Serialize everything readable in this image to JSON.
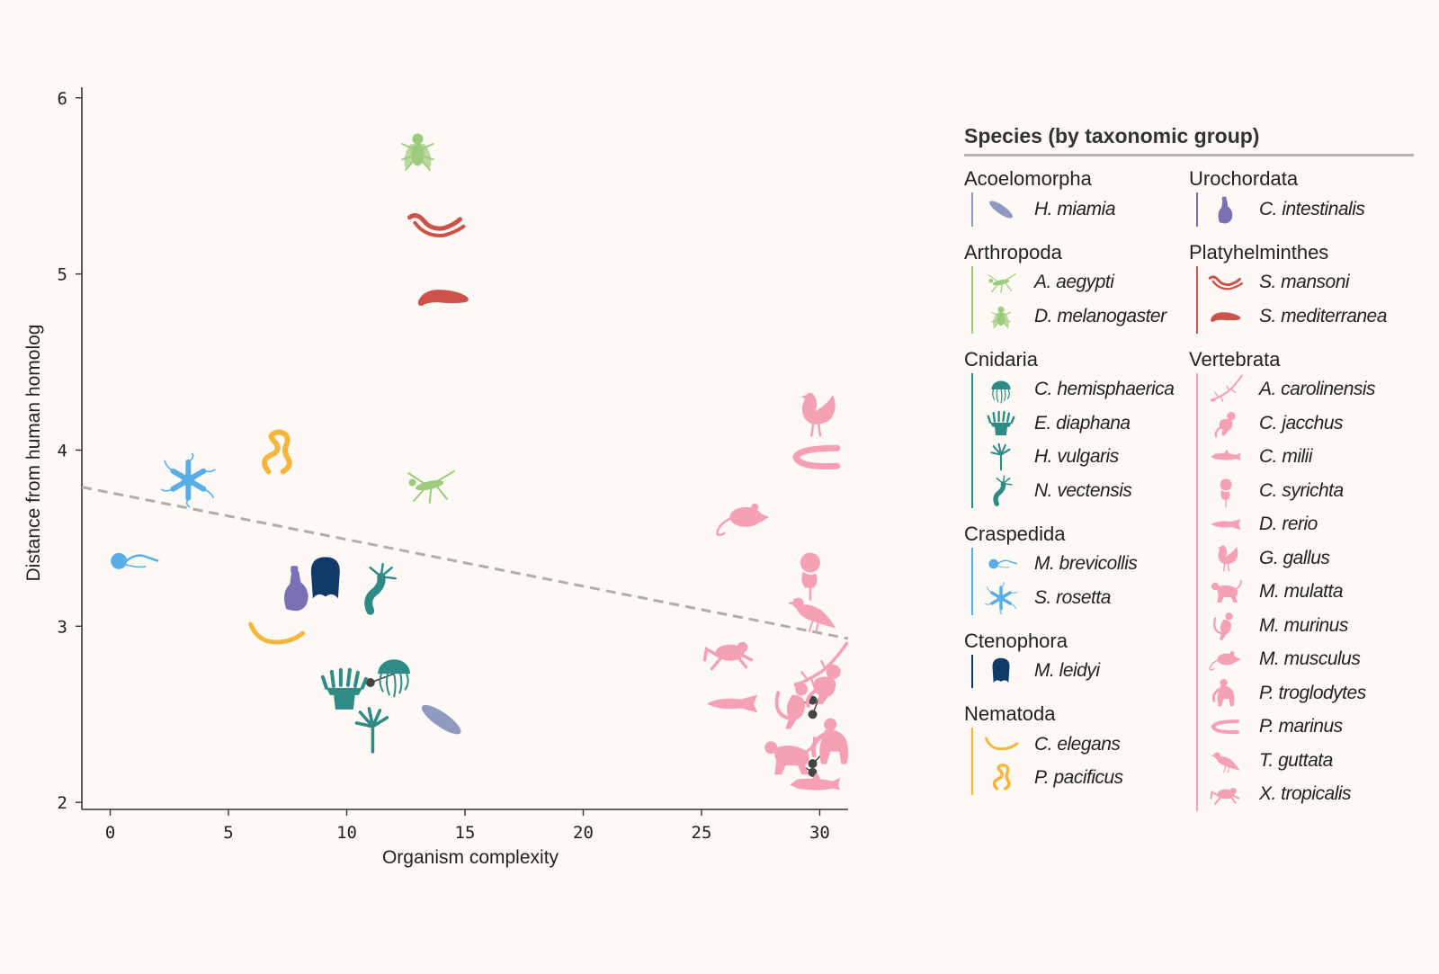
{
  "chart_data": {
    "type": "scatter",
    "xlabel": "Organism complexity",
    "ylabel": "Distance from human homolog",
    "xlim": [
      -1.2,
      31.2
    ],
    "ylim": [
      1.96,
      6.06
    ],
    "x_ticks": [
      0,
      5,
      10,
      15,
      20,
      25,
      30
    ],
    "y_ticks": [
      2,
      3,
      4,
      5,
      6
    ],
    "grid": false,
    "trend_line": {
      "style": "dashed",
      "color": "#b0adaa",
      "points": [
        [
          -1.2,
          3.79
        ],
        [
          31.2,
          2.93
        ]
      ]
    },
    "legend_title": "Species (by taxonomic group)",
    "legend_position": "right",
    "groups": [
      {
        "name": "Acoelomorpha",
        "color": "#8e9bbf",
        "species": [
          {
            "name": "H. miamia",
            "icon": "acoel-worm-icon",
            "x": 14.0,
            "y": 2.47
          }
        ]
      },
      {
        "name": "Arthropoda",
        "color": "#9ccb7c",
        "species": [
          {
            "name": "A. aegypti",
            "icon": "mosquito-icon",
            "x": 13.5,
            "y": 3.8
          },
          {
            "name": "D. melanogaster",
            "icon": "fly-icon",
            "x": 13.0,
            "y": 5.7
          }
        ]
      },
      {
        "name": "Cnidaria",
        "color": "#2e8b86",
        "species": [
          {
            "name": "C. hemisphaerica",
            "icon": "jellyfish-icon",
            "x": 12.0,
            "y": 2.73
          },
          {
            "name": "E. diaphana",
            "icon": "anemone-icon",
            "x": 9.9,
            "y": 2.64
          },
          {
            "name": "H. vulgaris",
            "icon": "hydra-icon",
            "x": 11.1,
            "y": 2.41
          },
          {
            "name": "N. vectensis",
            "icon": "starlet-anemone-icon",
            "x": 11.3,
            "y": 3.21
          }
        ]
      },
      {
        "name": "Craspedida",
        "color": "#5aaee8",
        "species": [
          {
            "name": "M. brevicollis",
            "icon": "choanoflagellate-icon",
            "x": 0.9,
            "y": 3.37
          },
          {
            "name": "S. rosetta",
            "icon": "rosette-colony-icon",
            "x": 3.3,
            "y": 3.83
          }
        ]
      },
      {
        "name": "Ctenophora",
        "color": "#113a6a",
        "species": [
          {
            "name": "M. leidyi",
            "icon": "comb-jelly-icon",
            "x": 9.1,
            "y": 3.27
          }
        ]
      },
      {
        "name": "Nematoda",
        "color": "#f6b63e",
        "species": [
          {
            "name": "C. elegans",
            "icon": "roundworm-icon",
            "x": 7.0,
            "y": 2.95
          },
          {
            "name": "P. pacificus",
            "icon": "coiled-worm-icon",
            "x": 7.0,
            "y": 3.98
          }
        ]
      },
      {
        "name": "Urochordata",
        "color": "#7a70b4",
        "species": [
          {
            "name": "C. intestinalis",
            "icon": "sea-squirt-icon",
            "x": 7.9,
            "y": 3.22
          }
        ]
      },
      {
        "name": "Platyhelminthes",
        "color": "#cc524a",
        "species": [
          {
            "name": "S. mansoni",
            "icon": "blood-fluke-icon",
            "x": 13.8,
            "y": 5.28
          },
          {
            "name": "S. mediterranea",
            "icon": "planarian-icon",
            "x": 14.1,
            "y": 4.87
          }
        ]
      },
      {
        "name": "Vertebrata",
        "color": "#f5a0b4",
        "species": [
          {
            "name": "A. carolinensis",
            "icon": "lizard-icon",
            "x": 30.0,
            "y": 2.77
          },
          {
            "name": "C. jacchus",
            "icon": "marmoset-icon",
            "x": 30.2,
            "y": 2.67
          },
          {
            "name": "C. milii",
            "icon": "elephant-shark-icon",
            "x": 29.8,
            "y": 2.1
          },
          {
            "name": "C. syrichta",
            "icon": "tarsier-icon",
            "x": 29.6,
            "y": 3.3
          },
          {
            "name": "D. rerio",
            "icon": "zebrafish-icon",
            "x": 26.3,
            "y": 2.56
          },
          {
            "name": "G. gallus",
            "icon": "chicken-icon",
            "x": 29.8,
            "y": 4.2
          },
          {
            "name": "M. mulatta",
            "icon": "macaque-icon",
            "x": 28.7,
            "y": 2.26
          },
          {
            "name": "M. murinus",
            "icon": "mouse-lemur-icon",
            "x": 29.0,
            "y": 2.55
          },
          {
            "name": "M. musculus",
            "icon": "mouse-icon",
            "x": 26.8,
            "y": 3.62
          },
          {
            "name": "P. troglodytes",
            "icon": "chimpanzee-icon",
            "x": 30.6,
            "y": 2.34
          },
          {
            "name": "P. marinus",
            "icon": "lamprey-icon",
            "x": 29.9,
            "y": 3.96
          },
          {
            "name": "T. guttata",
            "icon": "finch-icon",
            "x": 29.7,
            "y": 3.08
          },
          {
            "name": "X. tropicalis",
            "icon": "frog-icon",
            "x": 26.2,
            "y": 2.85
          }
        ]
      }
    ],
    "connectors": [
      {
        "from": [
          11.0,
          2.68
        ],
        "to": "C. hemisphaerica"
      },
      {
        "from": [
          29.7,
          2.58
        ],
        "to": "M. murinus"
      },
      {
        "from": [
          29.7,
          2.5
        ],
        "to": "C. jacchus"
      },
      {
        "from": [
          29.7,
          2.22
        ],
        "to": "P. troglodytes"
      },
      {
        "from": [
          29.7,
          2.17
        ],
        "to": "M. mulatta"
      }
    ]
  },
  "legend": {
    "title": "Species (by taxonomic group)",
    "left_groups": [
      "Acoelomorpha",
      "Arthropoda",
      "Cnidaria",
      "Craspedida",
      "Ctenophora",
      "Nematoda"
    ],
    "right_groups": [
      "Urochordata",
      "Platyhelminthes",
      "Vertebrata"
    ]
  }
}
